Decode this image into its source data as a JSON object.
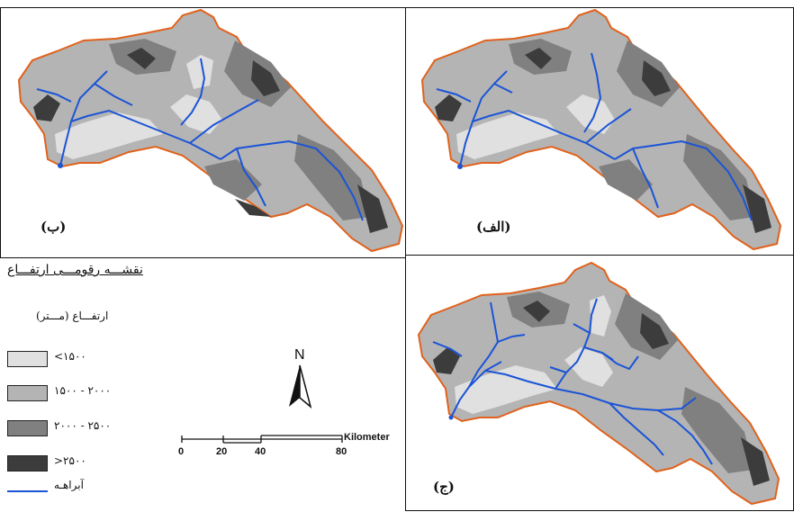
{
  "panels": [
    {
      "id": "b",
      "label": "(ب)"
    },
    {
      "id": "alef",
      "label": "(الف)"
    },
    {
      "id": "jim",
      "label": "(ج)"
    }
  ],
  "legend": {
    "title": "نقشـــه رقومـــی ارتفـــاع",
    "subtitle": "ارتفـــاع (مـــتر)",
    "classes": [
      {
        "label": "<۱۵۰۰",
        "color": "#e0e0e0"
      },
      {
        "label": "۱۵۰۰ - ۲۰۰۰",
        "color": "#b4b4b4"
      },
      {
        "label": "۲۰۰۰ - ۲۵۰۰",
        "color": "#808080"
      },
      {
        "label": ">۲۵۰۰",
        "color": "#3c3c3c"
      }
    ],
    "river_label": "آبراهـه",
    "river_color": "#1b54d6",
    "boundary_color": "#e0621c"
  },
  "north_arrow": {
    "label": "N"
  },
  "scale_bar": {
    "ticks": [
      "0",
      "20",
      "40",
      "80"
    ],
    "unit": "Kilometer"
  }
}
